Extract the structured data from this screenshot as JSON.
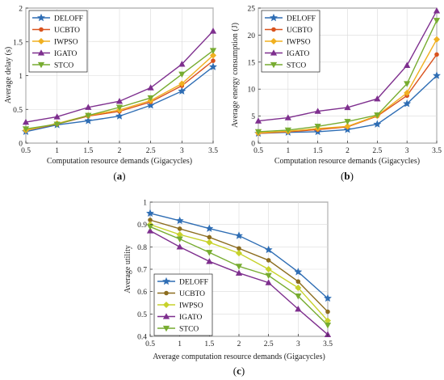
{
  "figure": {
    "colors": {
      "DELOFF": "#2e6db4",
      "UCBTO": "#d9531e",
      "IWPSO": "#f0b020",
      "IGATO": "#7e2f8e",
      "STCO": "#77ac30",
      "UCBTO_c": "#8c6d1f",
      "IWPSO_c": "#c7d22b"
    },
    "markers": {
      "DELOFF": "star",
      "UCBTO": "dot",
      "IWPSO": "diamond",
      "IGATO": "triangle-up",
      "STCO": "triangle-down"
    }
  },
  "chart_data": [
    {
      "type": "line",
      "panel_label": "(a)",
      "caption_prefix": "(",
      "caption_letter": "a",
      "caption_suffix": ")",
      "xlabel": "Computation resource demands (Gigacycles)",
      "ylabel": "Average delay (s)",
      "x": [
        0.5,
        1,
        1.5,
        2,
        2.5,
        3,
        3.5
      ],
      "xlim": [
        0.5,
        3.5
      ],
      "ylim": [
        0,
        2
      ],
      "xticks": [
        "0.5",
        "1",
        "1.5",
        "2",
        "2.5",
        "3",
        "3.5"
      ],
      "yticks": [
        "0",
        "0.5",
        "1",
        "1.5",
        "2"
      ],
      "ytick_values": [
        0,
        0.5,
        1,
        1.5,
        2
      ],
      "grid": true,
      "legend_position": "top-left",
      "series": [
        {
          "name": "DELOFF",
          "values": [
            0.17,
            0.27,
            0.33,
            0.4,
            0.56,
            0.77,
            1.13
          ]
        },
        {
          "name": "UCBTO",
          "values": [
            0.19,
            0.28,
            0.4,
            0.47,
            0.61,
            0.85,
            1.22
          ]
        },
        {
          "name": "IWPSO",
          "values": [
            0.19,
            0.29,
            0.41,
            0.49,
            0.63,
            0.88,
            1.3
          ]
        },
        {
          "name": "IGATO",
          "values": [
            0.31,
            0.39,
            0.53,
            0.62,
            0.82,
            1.17,
            1.66
          ]
        },
        {
          "name": "STCO",
          "values": [
            0.21,
            0.28,
            0.41,
            0.53,
            0.67,
            1.02,
            1.37
          ]
        }
      ]
    },
    {
      "type": "line",
      "panel_label": "(b)",
      "caption_prefix": "(",
      "caption_letter": "b",
      "caption_suffix": ")",
      "xlabel": "Computation resource demands (Gigacycles)",
      "ylabel": "Average energy consumption (J)",
      "x": [
        0.5,
        1,
        1.5,
        2,
        2.5,
        3,
        3.5
      ],
      "xlim": [
        0.5,
        3.5
      ],
      "ylim": [
        0,
        25
      ],
      "xticks": [
        "0.5",
        "1",
        "1.5",
        "2",
        "2.5",
        "3",
        "3.5"
      ],
      "yticks": [
        "0",
        "5",
        "10",
        "15",
        "20",
        "25"
      ],
      "ytick_values": [
        0,
        5,
        10,
        15,
        20,
        25
      ],
      "grid": true,
      "legend_position": "top-left",
      "series": [
        {
          "name": "DELOFF",
          "values": [
            1.8,
            2.0,
            2.1,
            2.5,
            3.5,
            7.3,
            12.5
          ]
        },
        {
          "name": "UCBTO",
          "values": [
            1.8,
            2.1,
            2.5,
            3.0,
            5.0,
            8.8,
            16.4
          ]
        },
        {
          "name": "IWPSO",
          "values": [
            1.9,
            2.2,
            2.7,
            3.1,
            5.1,
            9.3,
            19.2
          ]
        },
        {
          "name": "IGATO",
          "values": [
            4.1,
            4.7,
            5.9,
            6.6,
            8.2,
            14.4,
            24.5
          ]
        },
        {
          "name": "STCO",
          "values": [
            2.1,
            2.4,
            3.1,
            4.0,
            5.2,
            11.0,
            22.7
          ]
        }
      ]
    },
    {
      "type": "line",
      "panel_label": "(c)",
      "caption_prefix": "(",
      "caption_letter": "c",
      "caption_suffix": ")",
      "xlabel": "Average computation resource demands (Gigacycles)",
      "ylabel": "Average utility",
      "x": [
        0.5,
        1,
        1.5,
        2,
        2.5,
        3,
        3.5
      ],
      "xlim": [
        0.5,
        3.5
      ],
      "ylim": [
        0.4,
        1
      ],
      "xticks": [
        "0.5",
        "1",
        "1.5",
        "2",
        "2.5",
        "3",
        "3.5"
      ],
      "yticks": [
        "0.4",
        "0.5",
        "0.6",
        "0.7",
        "0.8",
        "0.9",
        "1"
      ],
      "ytick_values": [
        0.4,
        0.5,
        0.6,
        0.7,
        0.8,
        0.9,
        1
      ],
      "grid": true,
      "legend_position": "bottom-left",
      "series": [
        {
          "name": "DELOFF",
          "values": [
            0.95,
            0.917,
            0.882,
            0.85,
            0.787,
            0.688,
            0.57
          ]
        },
        {
          "name": "UCBTO",
          "values": [
            0.92,
            0.881,
            0.843,
            0.793,
            0.74,
            0.645,
            0.51
          ]
        },
        {
          "name": "IWPSO",
          "values": [
            0.9,
            0.855,
            0.82,
            0.772,
            0.7,
            0.617,
            0.47
          ]
        },
        {
          "name": "IGATO",
          "values": [
            0.872,
            0.8,
            0.735,
            0.683,
            0.64,
            0.522,
            0.408
          ]
        },
        {
          "name": "STCO",
          "values": [
            0.89,
            0.835,
            0.775,
            0.713,
            0.672,
            0.58,
            0.45
          ]
        }
      ]
    }
  ]
}
